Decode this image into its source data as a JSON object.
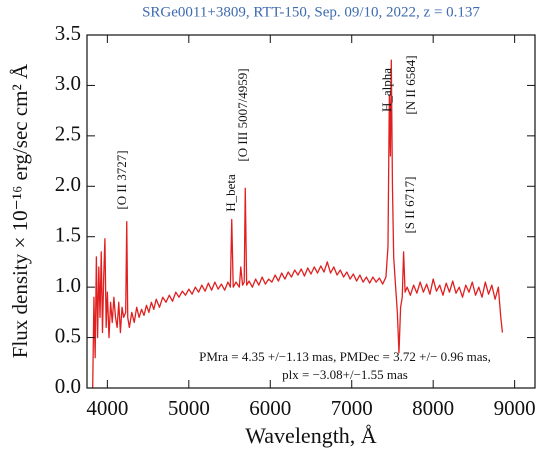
{
  "chart_data": {
    "type": "line",
    "title": "SRGe0011+3809, RTT-150, Sep. 09/10, 2022, z = 0.137",
    "title_color": "#3d6ab0",
    "x_label": "Wavelength, Å",
    "y_label": "Flux density × 10⁻¹⁶ erg/sec cm² Å",
    "xlim": [
      3750,
      9250
    ],
    "ylim": [
      0,
      3.5
    ],
    "xticks": [
      4000,
      5000,
      6000,
      7000,
      8000,
      9000
    ],
    "yticks": [
      {
        "value": 0,
        "label": "0.0"
      },
      {
        "value": 0.5,
        "label": "0.5"
      },
      {
        "value": 1,
        "label": "1.0"
      },
      {
        "value": 1.5,
        "label": "1.5"
      },
      {
        "value": 2,
        "label": "2.0"
      },
      {
        "value": 2.5,
        "label": "2.5"
      },
      {
        "value": 3,
        "label": "3.0"
      },
      {
        "value": 3.5,
        "label": "3.5"
      }
    ],
    "grid": false,
    "annotations": [
      "[O II 3727]",
      "H_beta",
      "[O III 5007/4959]",
      "H_alpha",
      "[N II 6584]",
      "[S II 6717]",
      "PMra = 4.35 +/−1.13 mas, PMDec = 3.72 +/− 0.96 mas,",
      "plx = −3.08+/−1.55 mas"
    ],
    "x": [
      3820,
      3835,
      3850,
      3865,
      3880,
      3895,
      3910,
      3925,
      3940,
      3955,
      3970,
      3985,
      4000,
      4020,
      4040,
      4060,
      4080,
      4100,
      4120,
      4140,
      4160,
      4180,
      4200,
      4225,
      4238,
      4250,
      4270,
      4300,
      4330,
      4360,
      4390,
      4420,
      4450,
      4480,
      4510,
      4540,
      4570,
      4600,
      4640,
      4680,
      4720,
      4760,
      4800,
      4840,
      4880,
      4920,
      4960,
      5000,
      5040,
      5080,
      5120,
      5160,
      5200,
      5240,
      5280,
      5320,
      5360,
      5400,
      5440,
      5480,
      5510,
      5527,
      5545,
      5580,
      5620,
      5638,
      5660,
      5680,
      5693,
      5710,
      5740,
      5780,
      5820,
      5860,
      5900,
      5940,
      5980,
      6020,
      6060,
      6100,
      6140,
      6180,
      6220,
      6260,
      6300,
      6340,
      6380,
      6420,
      6460,
      6500,
      6540,
      6580,
      6620,
      6660,
      6700,
      6740,
      6780,
      6820,
      6860,
      6900,
      6940,
      6980,
      7020,
      7060,
      7100,
      7140,
      7180,
      7220,
      7260,
      7300,
      7340,
      7380,
      7420,
      7445,
      7462,
      7475,
      7486,
      7500,
      7515,
      7535,
      7560,
      7580,
      7600,
      7620,
      7637,
      7655,
      7680,
      7720,
      7760,
      7800,
      7840,
      7880,
      7920,
      7960,
      8000,
      8040,
      8080,
      8120,
      8160,
      8200,
      8240,
      8280,
      8320,
      8360,
      8400,
      8440,
      8480,
      8520,
      8560,
      8600,
      8640,
      8680,
      8720,
      8760,
      8800,
      8830,
      8850
    ],
    "series": [
      {
        "name": "spectrum",
        "color": "#e02020",
        "values": [
          0.0,
          0.9,
          0.3,
          1.3,
          0.5,
          1.2,
          0.7,
          1.35,
          0.55,
          1.1,
          1.48,
          0.6,
          0.95,
          0.5,
          0.85,
          0.65,
          0.9,
          0.7,
          0.6,
          0.85,
          0.55,
          0.8,
          0.7,
          0.75,
          1.65,
          0.7,
          0.6,
          0.75,
          0.65,
          0.8,
          0.7,
          0.78,
          0.72,
          0.82,
          0.75,
          0.85,
          0.78,
          0.88,
          0.8,
          0.9,
          0.85,
          0.92,
          0.86,
          0.95,
          0.9,
          0.96,
          0.92,
          0.98,
          0.93,
          1.0,
          0.95,
          1.02,
          0.96,
          1.04,
          0.97,
          1.05,
          0.98,
          1.03,
          0.97,
          1.05,
          1.0,
          1.67,
          1.0,
          1.05,
          1.0,
          1.2,
          1.02,
          1.05,
          1.98,
          1.02,
          1.06,
          1.0,
          1.08,
          1.02,
          1.1,
          1.03,
          1.08,
          1.05,
          1.12,
          1.06,
          1.14,
          1.08,
          1.15,
          1.1,
          1.17,
          1.12,
          1.18,
          1.11,
          1.19,
          1.13,
          1.2,
          1.14,
          1.21,
          1.15,
          1.25,
          1.14,
          1.2,
          1.12,
          1.17,
          1.1,
          1.15,
          1.08,
          1.13,
          1.06,
          1.12,
          1.05,
          1.1,
          1.04,
          1.1,
          1.05,
          1.09,
          1.03,
          1.1,
          1.4,
          2.9,
          2.3,
          3.25,
          2.0,
          1.3,
          1.05,
          0.75,
          0.35,
          0.8,
          0.9,
          1.35,
          0.95,
          1.0,
          0.92,
          1.02,
          0.94,
          1.05,
          0.95,
          1.03,
          0.93,
          1.08,
          0.96,
          1.02,
          0.92,
          1.04,
          0.95,
          1.06,
          0.94,
          1.0,
          0.9,
          1.02,
          0.95,
          1.05,
          0.92,
          1.0,
          0.9,
          1.05,
          0.93,
          1.02,
          0.88,
          1.0,
          0.7,
          0.55
        ]
      }
    ]
  }
}
